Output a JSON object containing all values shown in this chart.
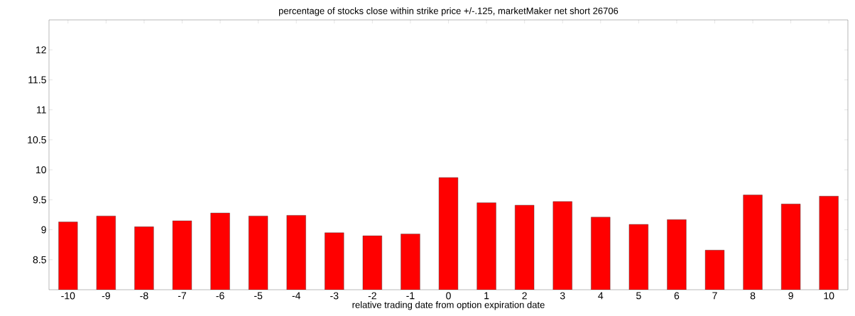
{
  "chart_data": {
    "type": "bar",
    "title": "percentage of stocks close within strike price +/-.125, marketMaker net short 26706",
    "xlabel": "relative trading date from option expiration date",
    "x": [
      -10,
      -9,
      -8,
      -7,
      -6,
      -5,
      -4,
      -3,
      -2,
      -1,
      0,
      1,
      2,
      3,
      4,
      5,
      6,
      7,
      8,
      9,
      10
    ],
    "values": [
      9.13,
      9.23,
      9.05,
      9.15,
      9.28,
      9.23,
      9.24,
      8.95,
      8.9,
      8.93,
      9.87,
      9.45,
      9.41,
      9.47,
      9.21,
      9.09,
      9.17,
      8.66,
      9.58,
      9.43,
      9.56
    ],
    "color": "#ff0000",
    "xlim": [
      -10.5,
      10.5
    ],
    "xticks": [
      -10,
      -9,
      -8,
      -7,
      -6,
      -5,
      -4,
      -3,
      -2,
      -1,
      0,
      1,
      2,
      3,
      4,
      5,
      6,
      7,
      8,
      9,
      10
    ],
    "ylim": [
      8,
      12.5
    ],
    "yticks": [
      8.5,
      9,
      9.5,
      10,
      10.5,
      11,
      11.5,
      12
    ]
  }
}
